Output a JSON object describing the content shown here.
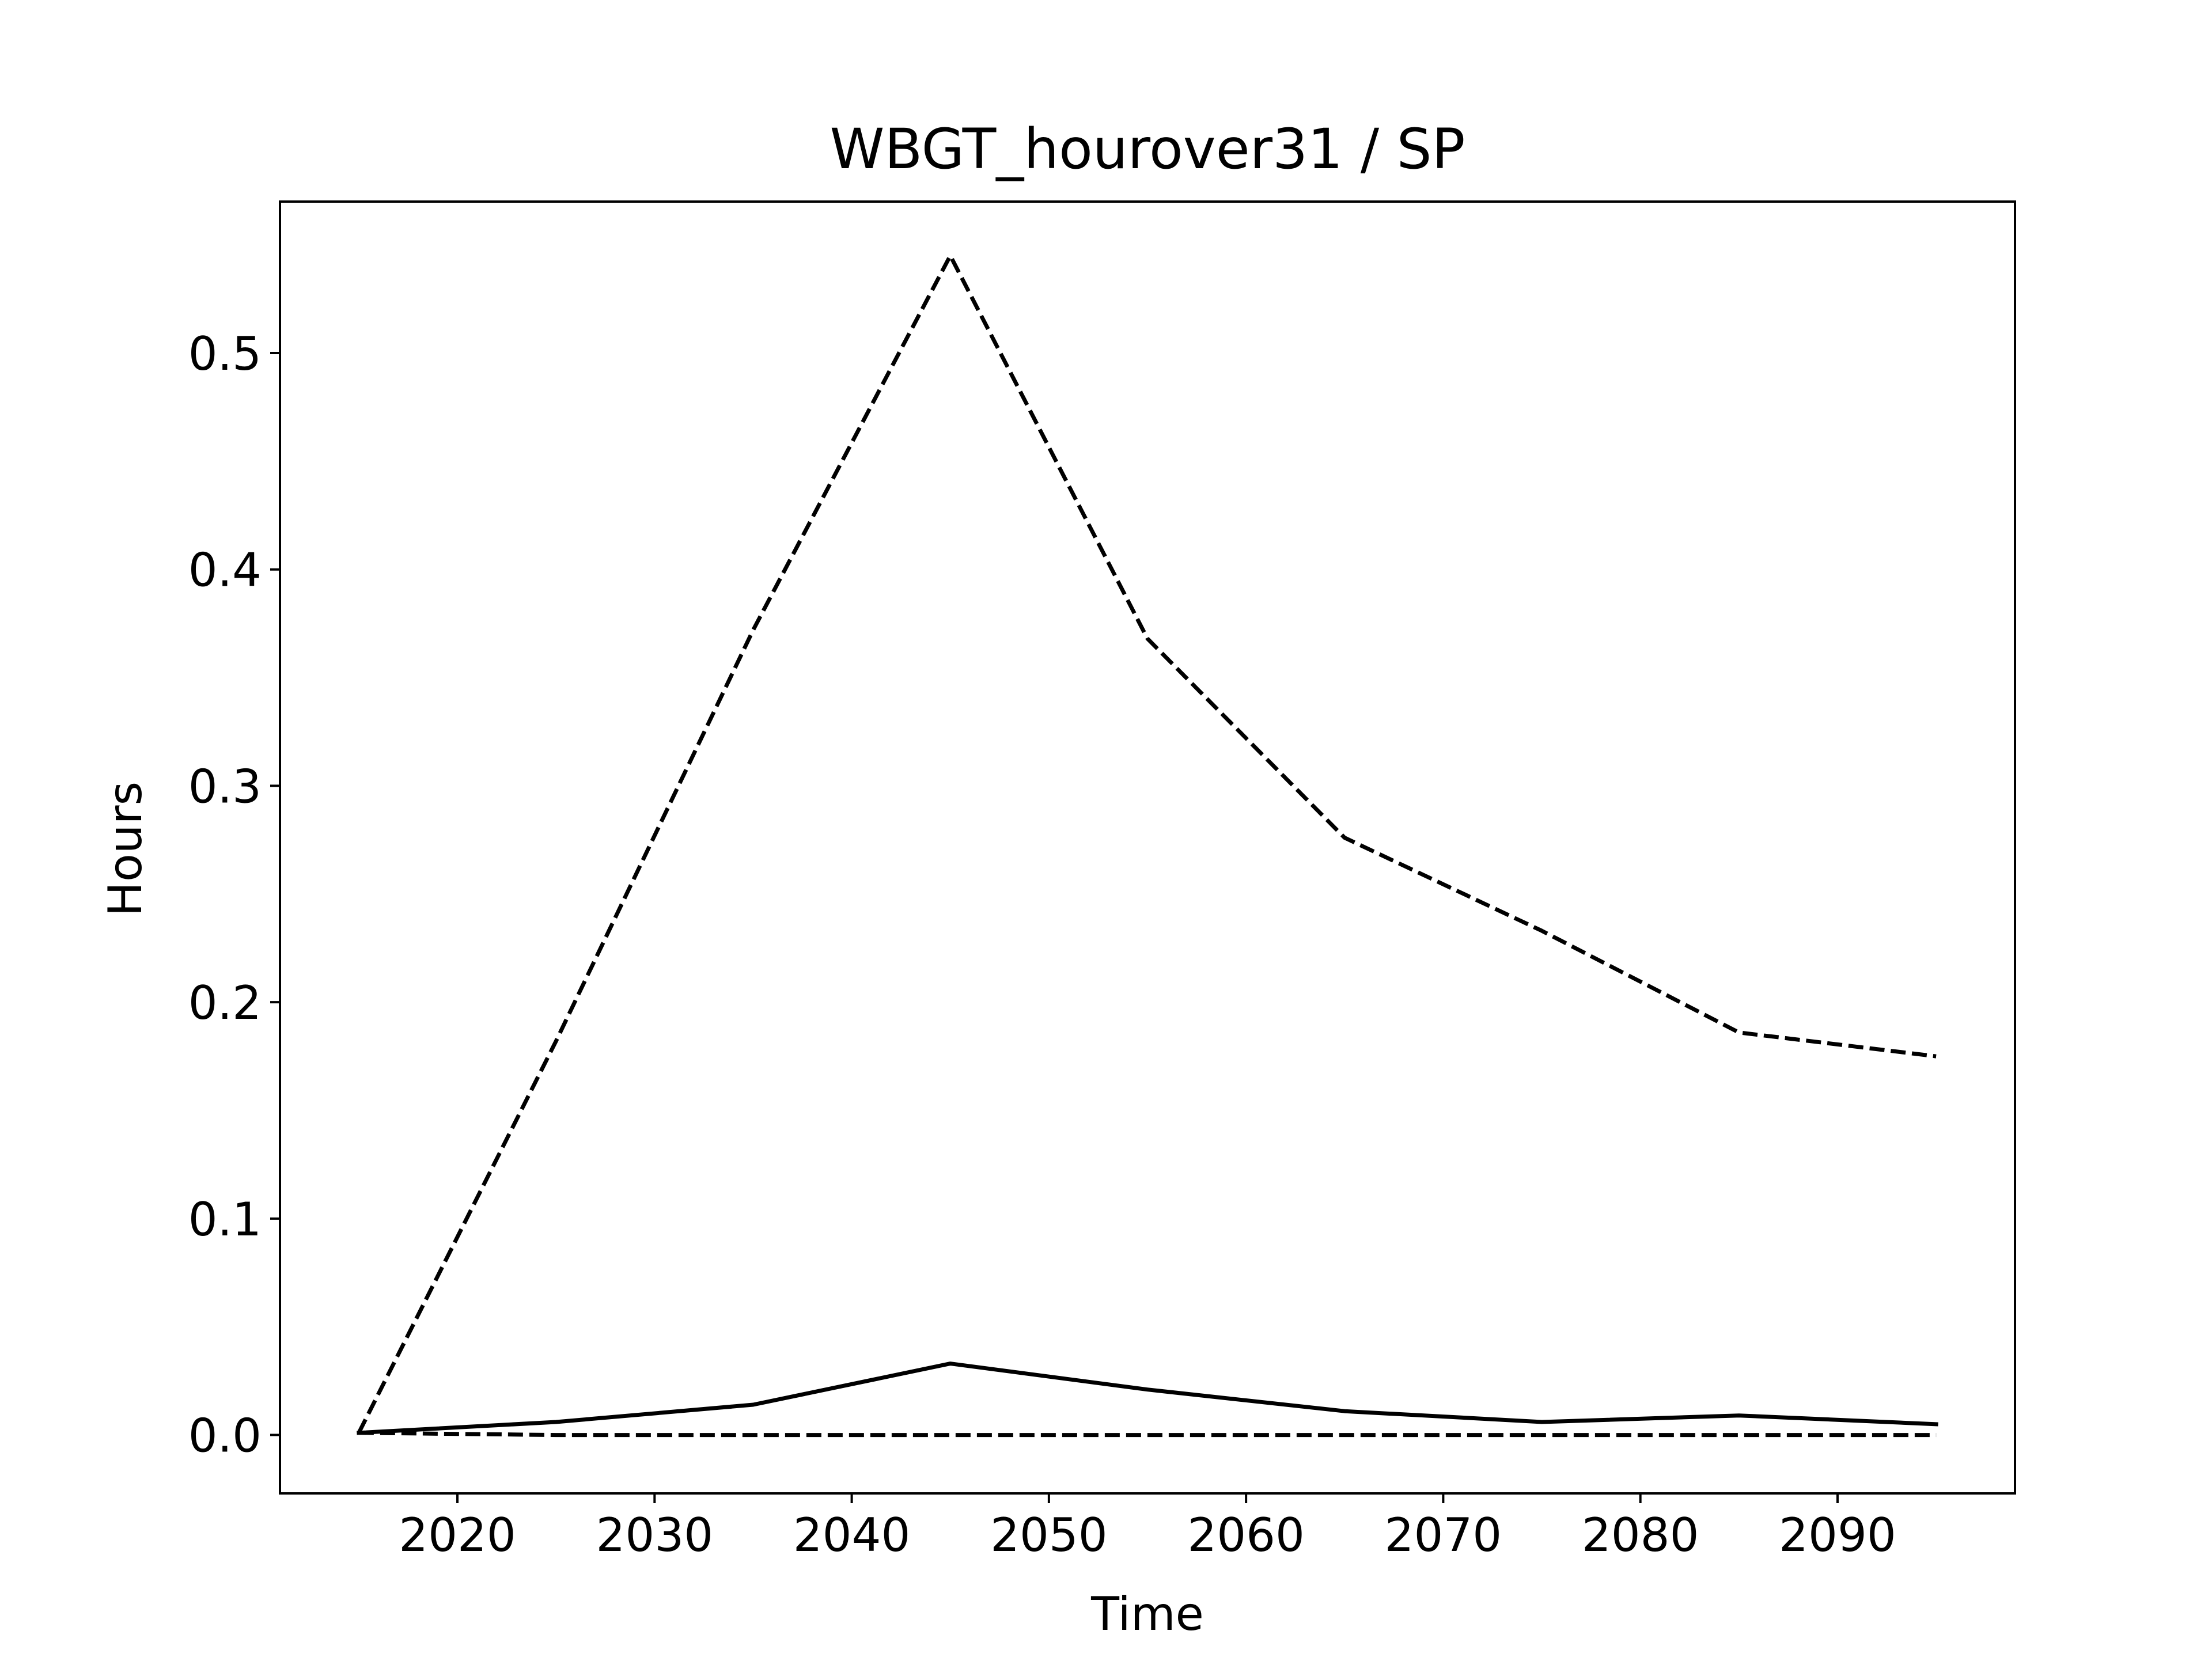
{
  "chart_data": {
    "type": "line",
    "title": "WBGT_hourover31 / SP",
    "xlabel": "Time",
    "ylabel": "Hours",
    "xlim": [
      2011,
      2099
    ],
    "ylim": [
      -0.027,
      0.57
    ],
    "xticks": [
      2020,
      2030,
      2040,
      2050,
      2060,
      2070,
      2080,
      2090
    ],
    "yticks": [
      0.0,
      0.1,
      0.2,
      0.3,
      0.4,
      0.5
    ],
    "ytick_labels": [
      "0.0",
      "0.1",
      "0.2",
      "0.3",
      "0.4",
      "0.5"
    ],
    "grid": false,
    "legend": "none",
    "x": [
      2015,
      2025,
      2035,
      2045,
      2055,
      2065,
      2075,
      2085,
      2095
    ],
    "series": [
      {
        "style": "dashed",
        "color": "#000000",
        "values": [
          0.001,
          0.182,
          0.372,
          0.545,
          0.368,
          0.276,
          0.233,
          0.186,
          0.175
        ]
      },
      {
        "style": "solid",
        "color": "#000000",
        "values": [
          0.001,
          0.006,
          0.014,
          0.033,
          0.021,
          0.011,
          0.006,
          0.009,
          0.005
        ]
      },
      {
        "style": "dashed",
        "color": "#000000",
        "values": [
          0.001,
          0.0,
          0.0,
          0.0,
          0.0,
          0.0,
          0.0,
          0.0,
          0.0
        ]
      }
    ]
  }
}
